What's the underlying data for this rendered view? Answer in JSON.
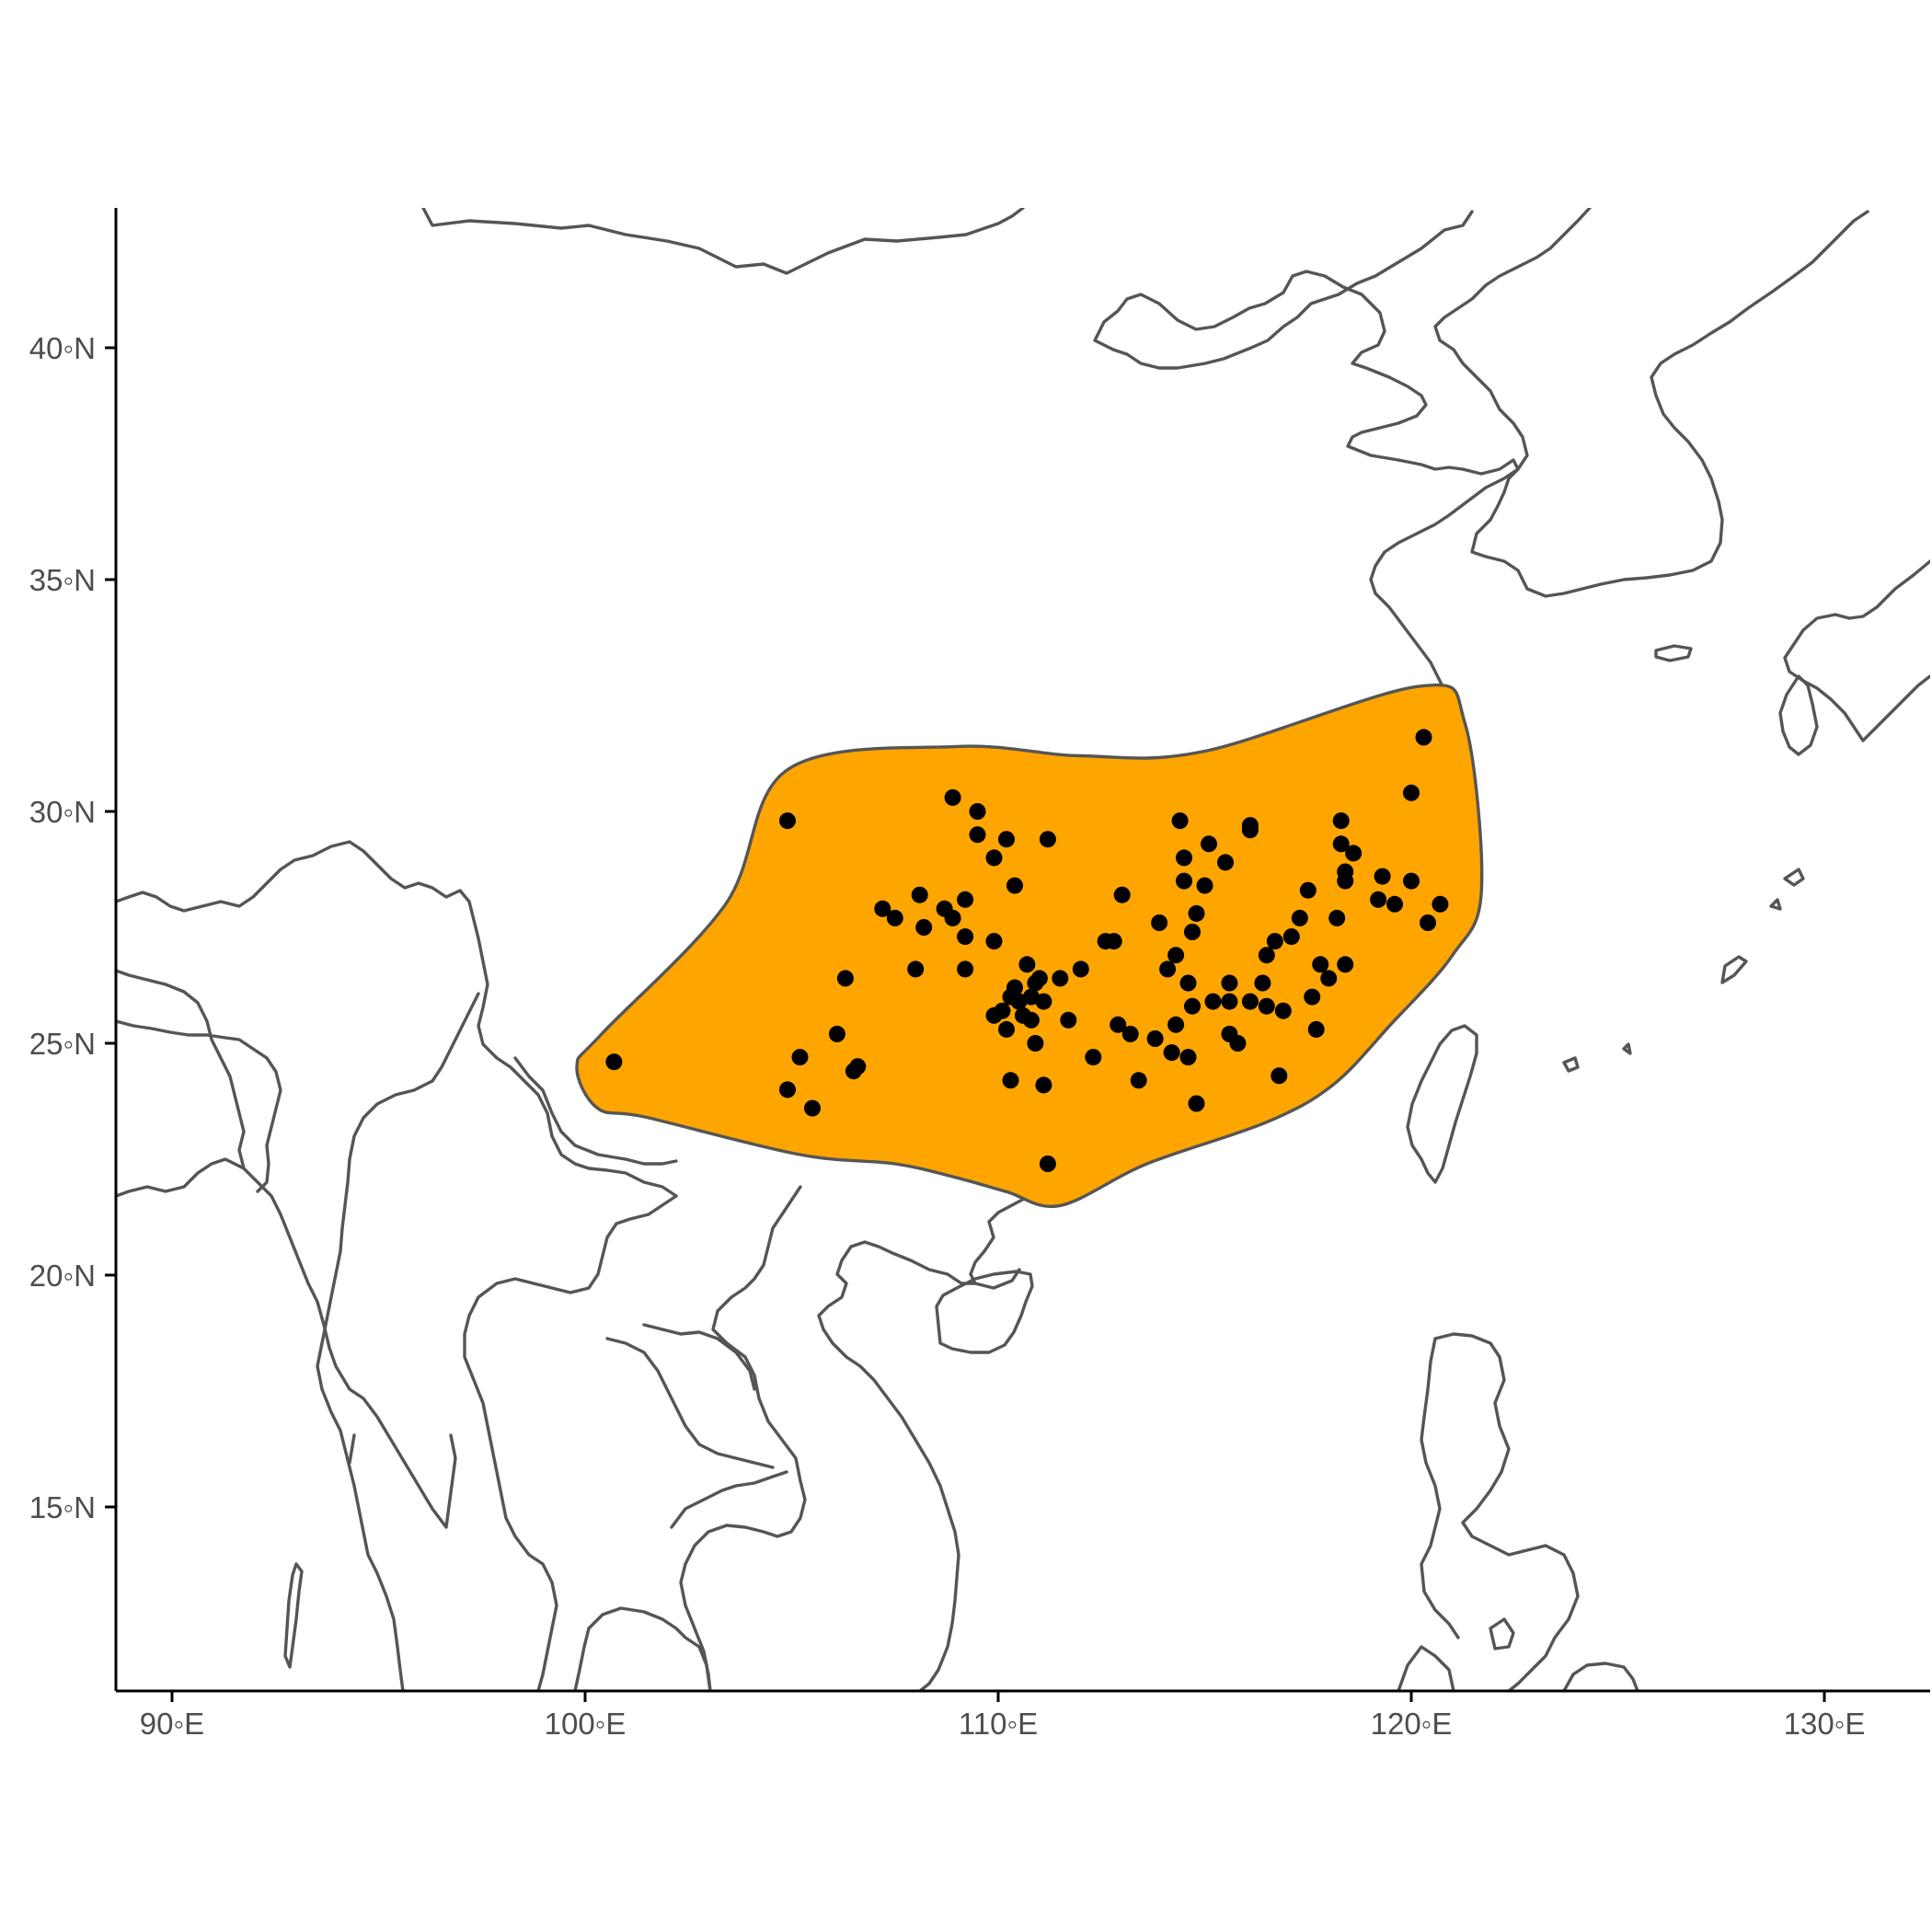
{
  "colors": {
    "range_fill": "#FFA500",
    "outline": "#555555",
    "points": "#000000",
    "axis": "#000000",
    "tick_text": "#4d4d4d"
  },
  "x_ticks": [
    {
      "value": 90,
      "label": "90◦E"
    },
    {
      "value": 100,
      "label": "100◦E"
    },
    {
      "value": 110,
      "label": "110◦E"
    },
    {
      "value": 120,
      "label": "120◦E"
    },
    {
      "value": 130,
      "label": "130◦E"
    }
  ],
  "y_ticks": [
    {
      "value": 40,
      "label": "40◦N"
    },
    {
      "value": 35,
      "label": "35◦N"
    },
    {
      "value": 30,
      "label": "30◦N"
    },
    {
      "value": 25,
      "label": "25◦N"
    },
    {
      "value": 20,
      "label": "20◦N"
    },
    {
      "value": 15,
      "label": "15◦N"
    }
  ],
  "chart_data": {
    "type": "scatter",
    "xlim": [
      88.7,
      132.6
    ],
    "ylim": [
      11.0,
      43.0
    ],
    "grid": false,
    "range_polygon": [
      [
        104.9,
        30.9
      ],
      [
        109.0,
        31.4
      ],
      [
        112.0,
        31.2
      ],
      [
        115.0,
        31.3
      ],
      [
        120.2,
        32.7
      ],
      [
        121.3,
        31.9
      ],
      [
        121.7,
        28.3
      ],
      [
        121.0,
        26.9
      ],
      [
        119.5,
        25.4
      ],
      [
        118.1,
        24.1
      ],
      [
        116.5,
        23.3
      ],
      [
        113.6,
        22.4
      ],
      [
        111.5,
        21.5
      ],
      [
        110.2,
        21.8
      ],
      [
        109.0,
        22.1
      ],
      [
        107.5,
        22.4
      ],
      [
        105.2,
        22.6
      ],
      [
        101.5,
        23.4
      ],
      [
        100.3,
        23.6
      ],
      [
        99.8,
        24.5
      ],
      [
        100.4,
        25.2
      ],
      [
        103.4,
        28.0
      ]
    ],
    "points": [
      [
        104.9,
        29.8
      ],
      [
        100.7,
        24.6
      ],
      [
        104.9,
        24.0
      ],
      [
        105.2,
        24.7
      ],
      [
        105.5,
        23.6
      ],
      [
        106.1,
        25.2
      ],
      [
        106.3,
        26.4
      ],
      [
        106.5,
        24.4
      ],
      [
        106.6,
        24.5
      ],
      [
        107.2,
        27.9
      ],
      [
        107.5,
        27.7
      ],
      [
        108.0,
        26.6
      ],
      [
        108.1,
        28.2
      ],
      [
        108.2,
        27.5
      ],
      [
        108.7,
        27.9
      ],
      [
        108.9,
        27.7
      ],
      [
        108.9,
        30.3
      ],
      [
        109.2,
        28.1
      ],
      [
        109.2,
        27.3
      ],
      [
        109.2,
        26.6
      ],
      [
        109.5,
        30.0
      ],
      [
        109.5,
        29.5
      ],
      [
        109.9,
        29.0
      ],
      [
        109.9,
        27.2
      ],
      [
        110.2,
        29.4
      ],
      [
        110.4,
        28.4
      ],
      [
        109.9,
        25.6
      ],
      [
        110.1,
        25.7
      ],
      [
        110.2,
        25.3
      ],
      [
        110.3,
        26.0
      ],
      [
        110.4,
        26.2
      ],
      [
        110.5,
        25.9
      ],
      [
        110.6,
        25.6
      ],
      [
        110.7,
        26.7
      ],
      [
        110.8,
        25.5
      ],
      [
        110.8,
        26.0
      ],
      [
        110.9,
        26.3
      ],
      [
        111.0,
        26.4
      ],
      [
        111.1,
        25.9
      ],
      [
        110.3,
        24.2
      ],
      [
        110.9,
        25.0
      ],
      [
        111.1,
        24.1
      ],
      [
        111.2,
        29.4
      ],
      [
        111.5,
        26.4
      ],
      [
        111.7,
        25.5
      ],
      [
        112.0,
        26.6
      ],
      [
        111.2,
        22.4
      ],
      [
        112.3,
        24.7
      ],
      [
        112.6,
        27.2
      ],
      [
        112.8,
        27.2
      ],
      [
        112.9,
        25.4
      ],
      [
        113.0,
        28.2
      ],
      [
        113.2,
        25.2
      ],
      [
        113.4,
        24.2
      ],
      [
        113.8,
        25.1
      ],
      [
        113.9,
        27.6
      ],
      [
        114.1,
        26.6
      ],
      [
        114.2,
        24.8
      ],
      [
        114.3,
        26.9
      ],
      [
        114.3,
        25.4
      ],
      [
        114.4,
        29.8
      ],
      [
        114.5,
        29.0
      ],
      [
        114.5,
        28.5
      ],
      [
        114.6,
        26.3
      ],
      [
        114.6,
        24.7
      ],
      [
        114.7,
        27.4
      ],
      [
        114.7,
        25.8
      ],
      [
        114.8,
        27.8
      ],
      [
        114.8,
        23.7
      ],
      [
        115.0,
        28.4
      ],
      [
        115.1,
        29.3
      ],
      [
        115.2,
        25.9
      ],
      [
        115.5,
        28.9
      ],
      [
        115.6,
        26.3
      ],
      [
        115.6,
        25.9
      ],
      [
        115.6,
        25.2
      ],
      [
        115.8,
        25.0
      ],
      [
        116.1,
        29.7
      ],
      [
        116.1,
        25.9
      ],
      [
        116.1,
        29.6
      ],
      [
        116.4,
        26.3
      ],
      [
        116.5,
        26.9
      ],
      [
        116.5,
        25.8
      ],
      [
        116.7,
        27.2
      ],
      [
        116.8,
        24.3
      ],
      [
        116.9,
        25.7
      ],
      [
        117.1,
        27.3
      ],
      [
        117.3,
        27.7
      ],
      [
        117.5,
        28.3
      ],
      [
        117.6,
        26.0
      ],
      [
        117.8,
        26.7
      ],
      [
        117.7,
        25.3
      ],
      [
        118.0,
        26.4
      ],
      [
        118.2,
        27.7
      ],
      [
        118.3,
        29.8
      ],
      [
        118.3,
        29.3
      ],
      [
        118.4,
        28.7
      ],
      [
        118.4,
        28.5
      ],
      [
        118.4,
        26.7
      ],
      [
        118.6,
        29.1
      ],
      [
        119.2,
        28.1
      ],
      [
        119.3,
        28.6
      ],
      [
        119.6,
        28.0
      ],
      [
        120.0,
        28.5
      ],
      [
        120.0,
        30.4
      ],
      [
        120.4,
        27.6
      ],
      [
        120.7,
        28.0
      ],
      [
        120.3,
        31.6
      ]
    ]
  }
}
